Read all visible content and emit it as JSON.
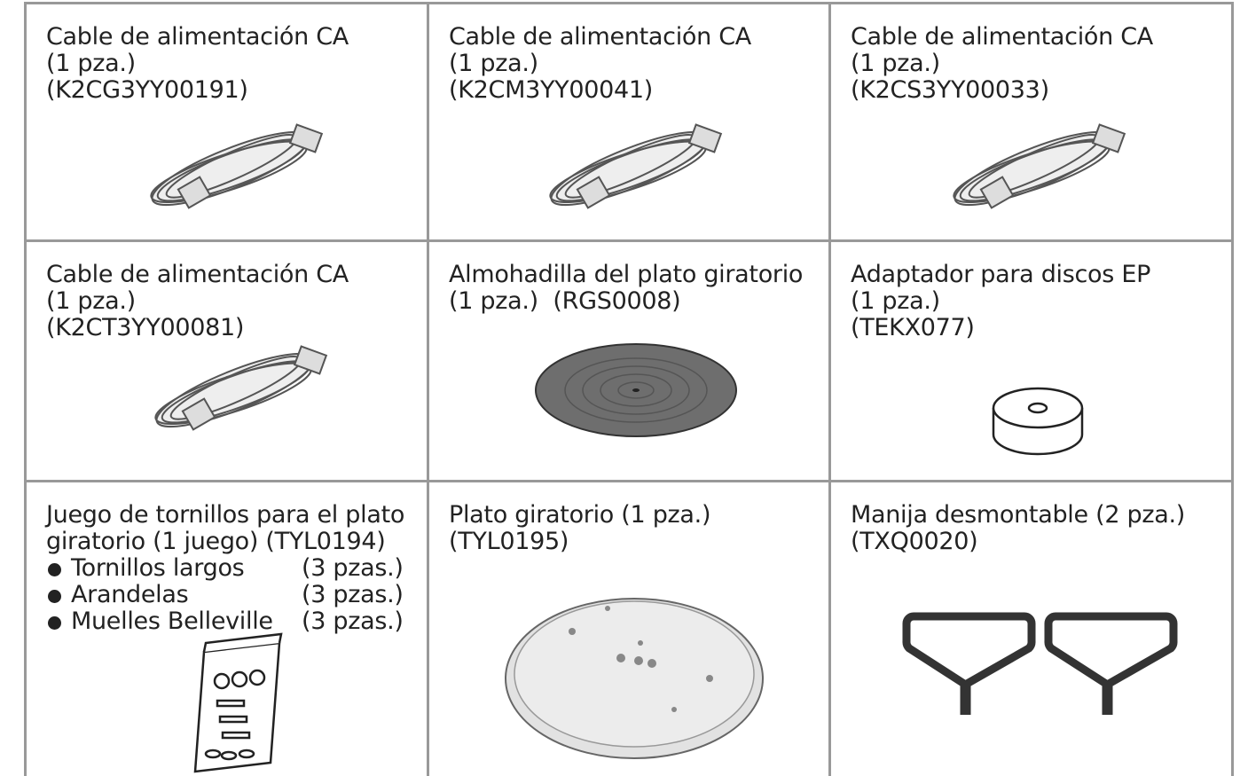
{
  "cells": [
    {
      "lines": [
        "Cable de alimentación CA",
        "(1 pza.)",
        "(K2CG3YY00191)"
      ]
    },
    {
      "lines": [
        "Cable de alimentación CA",
        "(1 pza.)",
        "(K2CM3YY00041)"
      ]
    },
    {
      "lines": [
        "Cable de alimentación CA",
        "(1 pza.)",
        "(K2CS3YY00033)"
      ]
    },
    {
      "lines": [
        "Cable de alimentación CA",
        "(1 pza.)",
        "(K2CT3YY00081)"
      ]
    },
    {
      "lines": [
        "Almohadilla del plato giratorio",
        "(1 pza.)  (RGS0008)"
      ]
    },
    {
      "lines": [
        "Adaptador para discos EP",
        "(1 pza.)",
        "(TEKX077)"
      ]
    },
    {
      "lines": [
        "Juego de tornillos para el plato",
        "giratorio (1 juego) (TYL0194)"
      ],
      "items": [
        {
          "name": "Tornillos largos",
          "qty": "(3 pzas.)"
        },
        {
          "name": "Arandelas",
          "qty": "(3 pzas.)"
        },
        {
          "name": "Muelles Belleville",
          "qty": "(3 pzas.)"
        }
      ]
    },
    {
      "lines": [
        "Plato giratorio (1 pza.)",
        "(TYL0195)"
      ]
    },
    {
      "lines": [
        "Manija desmontable (2 pza.)",
        "(TXQ0020)"
      ]
    }
  ]
}
